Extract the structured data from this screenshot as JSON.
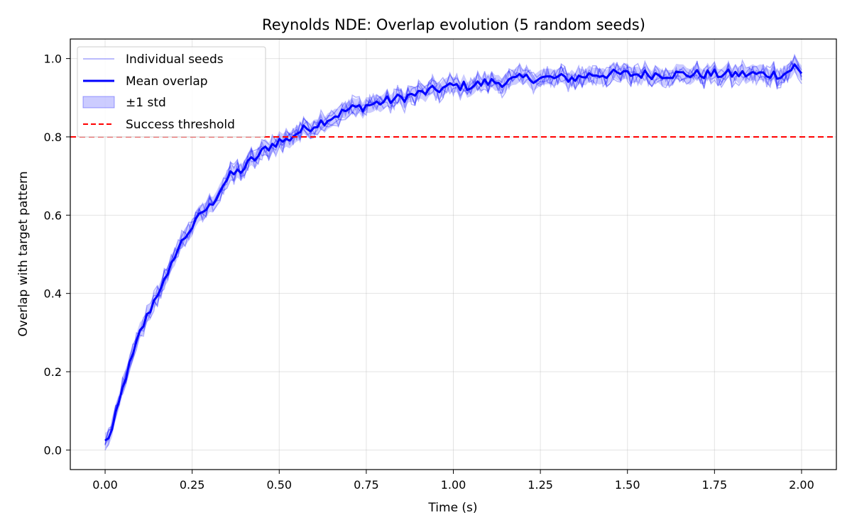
{
  "chart_data": {
    "type": "line",
    "title": "Reynolds NDE: Overlap evolution (5 random seeds)",
    "xlabel": "Time (s)",
    "ylabel": "Overlap with target pattern",
    "xlim": [
      -0.1,
      2.1
    ],
    "ylim": [
      -0.05,
      1.05
    ],
    "xticks": [
      0.0,
      0.25,
      0.5,
      0.75,
      1.0,
      1.25,
      1.5,
      1.75,
      2.0
    ],
    "xtick_labels": [
      "0.00",
      "0.25",
      "0.50",
      "0.75",
      "1.00",
      "1.25",
      "1.50",
      "1.75",
      "2.00"
    ],
    "yticks": [
      0.0,
      0.2,
      0.4,
      0.6,
      0.8,
      1.0
    ],
    "ytick_labels": [
      "0.0",
      "0.2",
      "0.4",
      "0.6",
      "0.8",
      "1.0"
    ],
    "grid": true,
    "legend_position": "top-left",
    "mean_curve": {
      "x": [
        0.0,
        0.02,
        0.04,
        0.06,
        0.08,
        0.1,
        0.12,
        0.14,
        0.16,
        0.18,
        0.2,
        0.22,
        0.24,
        0.26,
        0.28,
        0.3,
        0.32,
        0.34,
        0.36,
        0.38,
        0.4,
        0.42,
        0.44,
        0.46,
        0.48,
        0.5,
        0.52,
        0.55,
        0.6,
        0.65,
        0.7,
        0.75,
        0.8,
        0.85,
        0.9,
        0.95,
        1.0,
        1.05,
        1.1,
        1.15,
        1.2,
        1.25,
        1.3,
        1.35,
        1.4,
        1.45,
        1.5,
        1.55,
        1.6,
        1.65,
        1.7,
        1.75,
        1.8,
        1.85,
        1.9,
        1.95,
        1.98,
        2.0
      ],
      "y": [
        0.02,
        0.05,
        0.12,
        0.19,
        0.24,
        0.3,
        0.34,
        0.38,
        0.42,
        0.44,
        0.5,
        0.53,
        0.56,
        0.58,
        0.61,
        0.62,
        0.65,
        0.68,
        0.7,
        0.71,
        0.72,
        0.74,
        0.75,
        0.77,
        0.78,
        0.79,
        0.79,
        0.81,
        0.83,
        0.85,
        0.87,
        0.88,
        0.89,
        0.9,
        0.91,
        0.92,
        0.93,
        0.93,
        0.94,
        0.94,
        0.95,
        0.95,
        0.95,
        0.95,
        0.96,
        0.96,
        0.96,
        0.96,
        0.96,
        0.96,
        0.96,
        0.96,
        0.96,
        0.96,
        0.96,
        0.96,
        0.98,
        0.96
      ]
    },
    "std_band": 0.02,
    "seed_count": 5,
    "threshold": 0.8,
    "colors": {
      "seeds": "#0000ff",
      "mean": "#0000ff",
      "band": "#0000ff",
      "threshold": "#ff0000",
      "axes": "#000000"
    },
    "legend": [
      {
        "label": "Individual seeds",
        "style": "thin-line"
      },
      {
        "label": "Mean overlap",
        "style": "thick-line"
      },
      {
        "label": "±1 std",
        "style": "patch"
      },
      {
        "label": "Success threshold",
        "style": "dashed-red"
      }
    ]
  }
}
